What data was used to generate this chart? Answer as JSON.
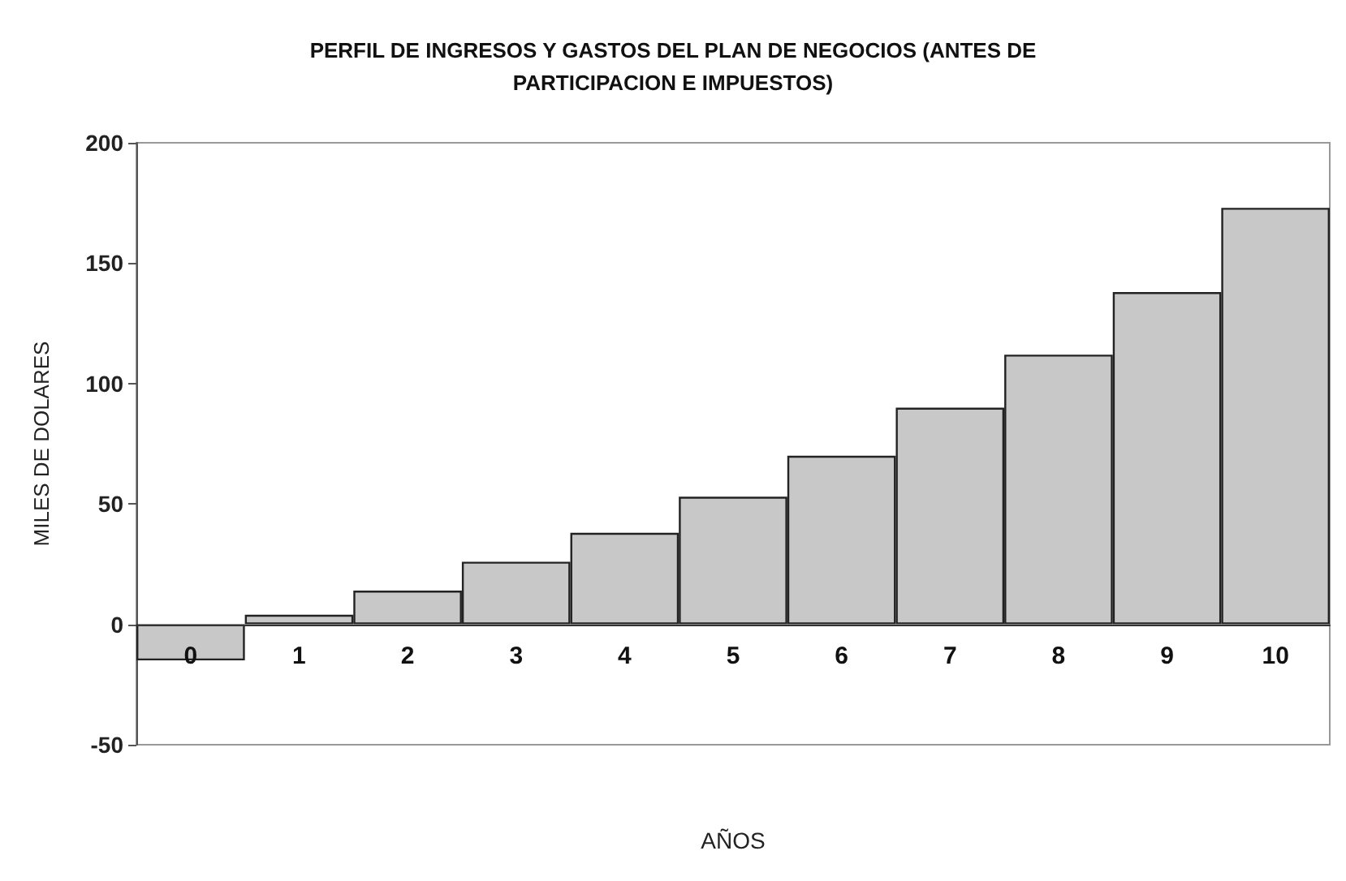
{
  "chart_data": {
    "type": "bar",
    "title": "PERFIL DE INGRESOS Y GASTOS DEL PLAN DE NEGOCIOS (ANTES DE\nPARTICIPACION E IMPUESTOS)",
    "xlabel": "AÑOS",
    "ylabel": "MILES DE DOLARES",
    "categories": [
      "0",
      "1",
      "2",
      "3",
      "4",
      "5",
      "6",
      "7",
      "8",
      "9",
      "10"
    ],
    "values": [
      -15,
      4,
      14,
      26,
      38,
      53,
      70,
      90,
      112,
      138,
      173
    ],
    "color": "#c8c8c8",
    "ylim": [
      -50,
      200
    ],
    "yticks": [
      -50,
      0,
      50,
      100,
      150,
      200
    ],
    "grid": false
  }
}
